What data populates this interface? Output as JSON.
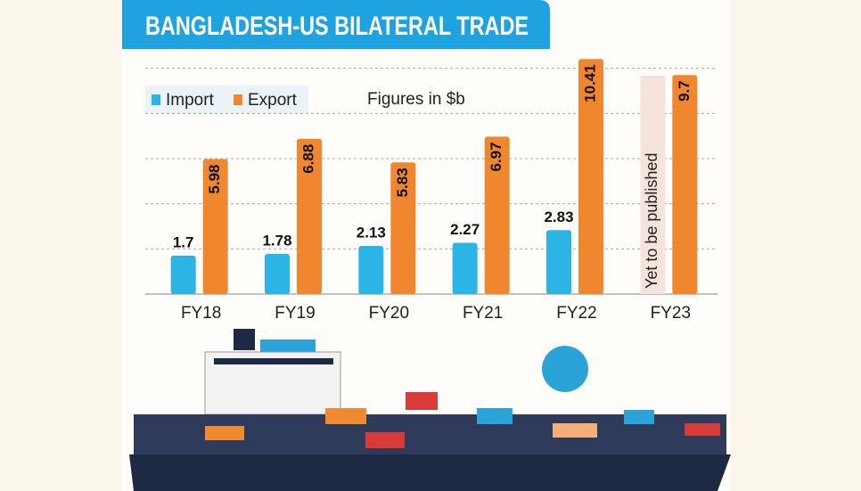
{
  "chart_data": {
    "type": "bar",
    "title": "BANGLADESH-US BILATERAL TRADE",
    "subtitle": "Figures in $b",
    "categories": [
      "FY18",
      "FY19",
      "FY20",
      "FY21",
      "FY22",
      "FY23"
    ],
    "series": [
      {
        "name": "Import",
        "color": "#2bb5e6",
        "values": [
          1.7,
          1.78,
          2.13,
          2.27,
          2.83,
          null
        ]
      },
      {
        "name": "Export",
        "color": "#f0872f",
        "values": [
          5.98,
          6.88,
          5.83,
          6.97,
          10.41,
          9.7
        ]
      }
    ],
    "annotation": "Yet to be published",
    "ylim": [
      0,
      12
    ],
    "yticks": [
      0,
      2,
      4,
      6,
      8,
      10
    ],
    "grid": true
  }
}
